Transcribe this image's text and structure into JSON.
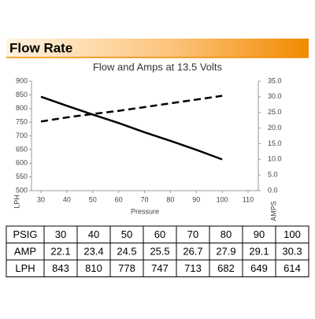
{
  "header": {
    "title": "Flow Rate"
  },
  "chart_data": {
    "type": "line",
    "title": "Flow and Amps at 13.5 Volts",
    "x": [
      30,
      40,
      50,
      60,
      70,
      80,
      90,
      100
    ],
    "xlabel": "Pressure",
    "ylabel": "LPH",
    "y2label": "AMPS",
    "xlim": [
      30,
      110
    ],
    "xticks": [
      30,
      40,
      50,
      60,
      70,
      80,
      90,
      100,
      110
    ],
    "ylim": [
      500,
      900
    ],
    "yticks": [
      500,
      550,
      600,
      650,
      700,
      750,
      800,
      850,
      900
    ],
    "y2lim": [
      0,
      35
    ],
    "y2ticks": [
      {
        "value": 0,
        "label": "0.0"
      },
      {
        "value": 5,
        "label": "5.0"
      },
      {
        "value": 10,
        "label": "10.0"
      },
      {
        "value": 15,
        "label": "15.0"
      },
      {
        "value": 20,
        "label": "20.0"
      },
      {
        "value": 25,
        "label": "25.0"
      },
      {
        "value": 30,
        "label": "30.0"
      },
      {
        "value": 35,
        "label": "35.0"
      }
    ],
    "series": [
      {
        "name": "LPH",
        "color": "#000000",
        "dashed": false,
        "values": [
          843,
          810,
          778,
          747,
          713,
          682,
          649,
          614
        ]
      },
      {
        "name": "AMP",
        "color": "#000000",
        "dashed": true,
        "axis": "y2",
        "values": [
          22.1,
          23.4,
          24.5,
          25.5,
          26.7,
          27.9,
          29.1,
          30.3
        ]
      }
    ]
  },
  "table": {
    "rows": [
      [
        "PSIG",
        30,
        40,
        50,
        60,
        70,
        80,
        90,
        100
      ],
      [
        "AMP",
        22.1,
        23.4,
        24.5,
        25.5,
        26.7,
        27.9,
        29.1,
        30.3
      ],
      [
        "LPH",
        843,
        810,
        778,
        747,
        713,
        682,
        649,
        614
      ]
    ]
  }
}
